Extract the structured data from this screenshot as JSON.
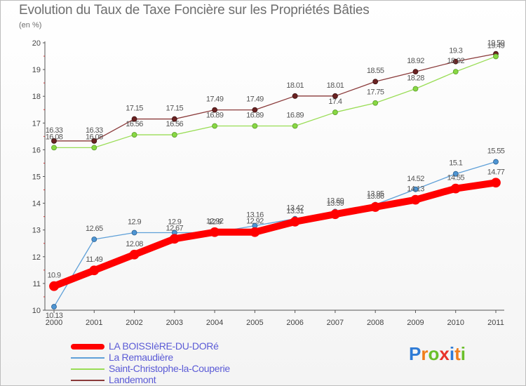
{
  "title": "Evolution du Taux de Taxe Foncière sur les Propriétés Bâties",
  "subtitle": "(en %)",
  "logo": {
    "letters": [
      "P",
      "r",
      "o",
      "x",
      "i",
      "t",
      "i"
    ],
    "colors": [
      "#2e7bd6",
      "#f07d1a",
      "#6bbf2a",
      "#e8332a",
      "#2e7bd6",
      "#f07d1a",
      "#6bbf2a"
    ]
  },
  "chart_data": {
    "type": "line",
    "title": "Evolution du Taux de Taxe Foncière sur les Propriétés Bâties",
    "ylabel": "(en %)",
    "xlabel": "",
    "x": [
      "2000",
      "2001",
      "2002",
      "2003",
      "2004",
      "2005",
      "2006",
      "2007",
      "2008",
      "2009",
      "2010",
      "2011"
    ],
    "ylim": [
      10,
      20
    ],
    "yticks": [
      "10",
      "11",
      "12",
      "13",
      "14",
      "15",
      "16",
      "17",
      "18",
      "19",
      "20"
    ],
    "grid": false,
    "legend": "bottom",
    "series": [
      {
        "name": "LA BOISSIèRE-DU-DORé",
        "color": "#ff0000",
        "values": [
          10.9,
          11.49,
          12.08,
          12.67,
          12.92,
          12.92,
          13.31,
          13.59,
          13.86,
          14.13,
          14.55,
          14.77
        ],
        "labels": [
          "10.9",
          "11.49",
          "12.08",
          "12.67",
          "12.92",
          "12.92",
          "13.31",
          "13.59",
          "13.86",
          "14.13",
          "14.55",
          "14.77"
        ]
      },
      {
        "name": "La Remaudière",
        "color": "#5fa0d8",
        "values": [
          10.13,
          12.65,
          12.9,
          12.9,
          12.9,
          13.16,
          13.42,
          13.69,
          13.95,
          14.52,
          15.1,
          15.55
        ],
        "labels": [
          "10.13",
          "12.65",
          "12.9",
          "12.9",
          "12.9",
          "13.16",
          "13.42",
          "13.69",
          "13.95",
          "14.52",
          "15.1",
          "15.55"
        ]
      },
      {
        "name": "Saint-Christophe-la-Couperie",
        "color": "#99dd55",
        "values": [
          16.08,
          16.08,
          16.56,
          16.56,
          16.89,
          16.89,
          16.89,
          17.4,
          17.75,
          18.28,
          18.92,
          19.49
        ],
        "labels": [
          "16.08",
          "16.08",
          "16.56",
          "16.56",
          "16.89",
          "16.89",
          "16.89",
          "17.4",
          "17.75",
          "18.28",
          "18.92",
          "19.49"
        ]
      },
      {
        "name": "Landemont",
        "color": "#8a3a3a",
        "values": [
          16.33,
          16.33,
          17.15,
          17.15,
          17.49,
          17.49,
          18.01,
          18.01,
          18.55,
          18.92,
          19.3,
          19.59
        ],
        "labels": [
          "16.33",
          "16.33",
          "17.15",
          "17.15",
          "17.49",
          "17.49",
          "18.01",
          "18.01",
          "18.55",
          "18.92",
          "19.3",
          "19.59"
        ]
      }
    ]
  }
}
